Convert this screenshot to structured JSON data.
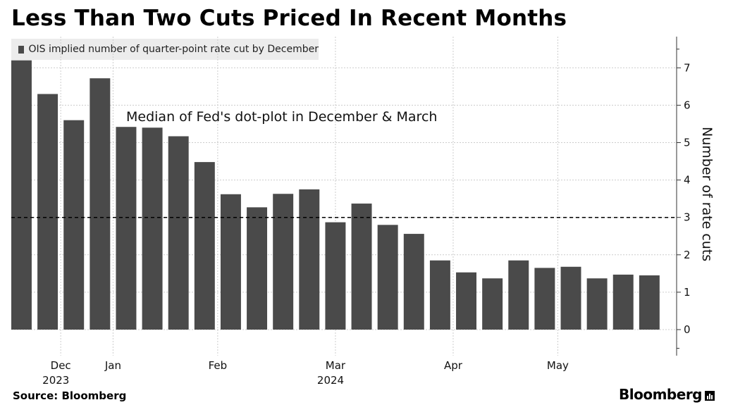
{
  "title": "Less Than Two Cuts Priced In Recent Months",
  "source": "Source: Bloomberg",
  "brand": "Bloomberg",
  "colors": {
    "bar": "#4a4a4a",
    "grid": "#cccccc",
    "reference_line": "#000000"
  },
  "chart_data": {
    "type": "bar",
    "title": "Less Than Two Cuts Priced In Recent Months",
    "legend": {
      "label": "OIS implied number of quarter-point rate cut by December",
      "placement": "top-left"
    },
    "ylabel": "Number of rate cuts",
    "y_axis_side": "right",
    "ylim": [
      -0.7,
      7.8
    ],
    "yticks": [
      0,
      1,
      2,
      3,
      4,
      5,
      6,
      7
    ],
    "grid": true,
    "values": [
      7.2,
      6.3,
      5.6,
      6.72,
      5.42,
      5.4,
      5.17,
      4.48,
      3.62,
      3.27,
      3.63,
      3.75,
      2.87,
      3.37,
      2.8,
      2.56,
      1.85,
      1.53,
      1.37,
      1.85,
      1.65,
      1.68,
      1.37,
      1.47,
      1.45
    ],
    "x_ticks": [
      {
        "label": "Dec",
        "after_bar": 1
      },
      {
        "label": "Jan",
        "after_bar": 3
      },
      {
        "label": "Feb",
        "after_bar": 7
      },
      {
        "label": "Mar",
        "after_bar": 11.5
      },
      {
        "label": "Apr",
        "after_bar": 16
      },
      {
        "label": "May",
        "after_bar": 20
      }
    ],
    "year_labels": [
      {
        "label": "2023",
        "under": "Dec"
      },
      {
        "label": "2024",
        "under": "Mar"
      }
    ],
    "reference_line": {
      "y": 3,
      "style": "dashed",
      "label": "Median of Fed's dot-plot in December & March"
    }
  }
}
